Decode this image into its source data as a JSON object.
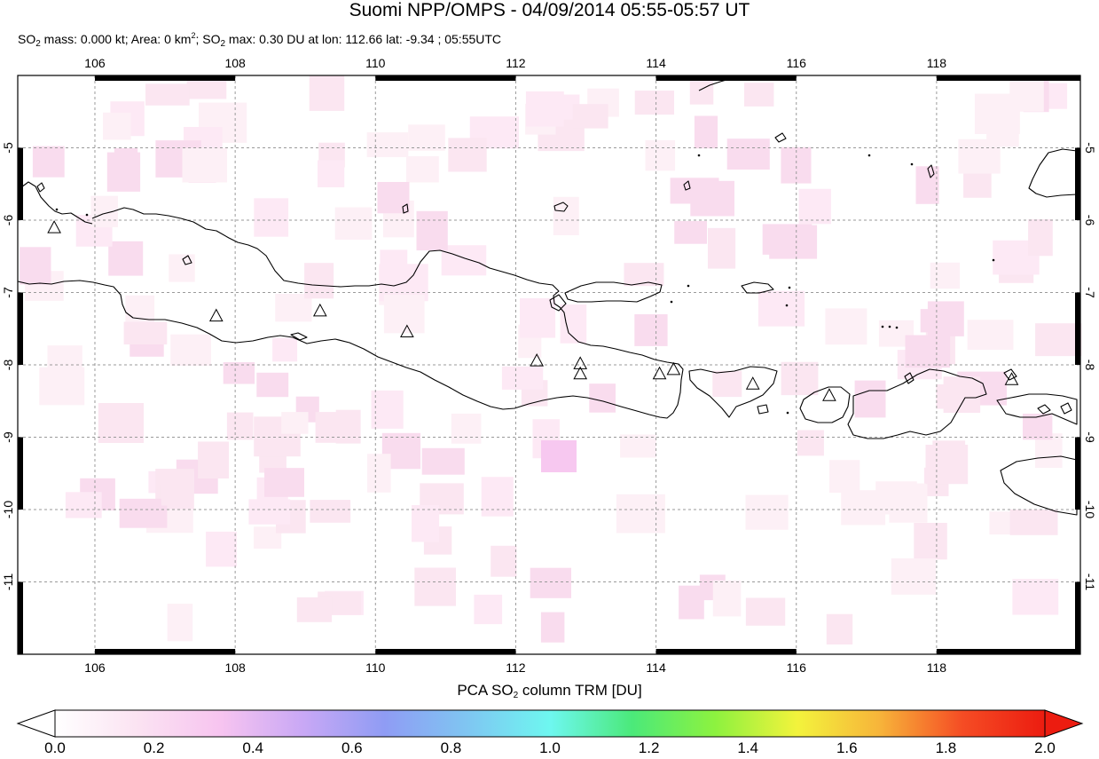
{
  "title": "Suomi NPP/OMPS - 04/09/2014 05:55-05:57 UT",
  "subtitle": {
    "p1": "SO",
    "p1_sub": "2",
    "p2": " mass: 0.000 kt; Area: 0 km",
    "p2_sup": "2",
    "p3": "; SO",
    "p3_sub": "2",
    "p4": " max: 0.30 DU at lon: 112.66 lat: -9.34 ; 05:55UTC"
  },
  "map": {
    "lon_ticks": [
      "106",
      "108",
      "110",
      "112",
      "114",
      "116",
      "118"
    ],
    "lat_ticks": [
      "-5",
      "-6",
      "-7",
      "-8",
      "-9",
      "-10",
      "-11"
    ],
    "lon_range": [
      104.9,
      120.05
    ],
    "lat_range": [
      -12.0,
      -4.0
    ],
    "grid": true,
    "volcano_marker": "triangle-icon",
    "volcanoes": [
      {
        "lon": 105.42,
        "lat": -6.1
      },
      {
        "lon": 107.73,
        "lat": -7.32
      },
      {
        "lon": 109.21,
        "lat": -7.25
      },
      {
        "lon": 110.45,
        "lat": -7.54
      },
      {
        "lon": 112.3,
        "lat": -7.94
      },
      {
        "lon": 112.92,
        "lat": -7.98
      },
      {
        "lon": 112.92,
        "lat": -8.12
      },
      {
        "lon": 114.05,
        "lat": -8.12
      },
      {
        "lon": 114.25,
        "lat": -8.06
      },
      {
        "lon": 115.38,
        "lat": -8.26
      },
      {
        "lon": 116.47,
        "lat": -8.42
      },
      {
        "lon": 119.07,
        "lat": -8.2
      }
    ]
  },
  "colorbar": {
    "title_p1": "PCA SO",
    "title_sub": "2",
    "title_p2": " column TRM [DU]",
    "ticks": [
      "0.0",
      "0.2",
      "0.4",
      "0.6",
      "0.8",
      "1.0",
      "1.2",
      "1.4",
      "1.6",
      "1.8",
      "2.0"
    ],
    "colors": [
      "#ffffff",
      "#fbe3f2",
      "#f7c4f0",
      "#c9a8f5",
      "#8f9cf4",
      "#7fc6f2",
      "#6ef7f0",
      "#4be97a",
      "#8df23f",
      "#f3f33c",
      "#f7b43a",
      "#f54c24",
      "#ec1c10"
    ]
  }
}
